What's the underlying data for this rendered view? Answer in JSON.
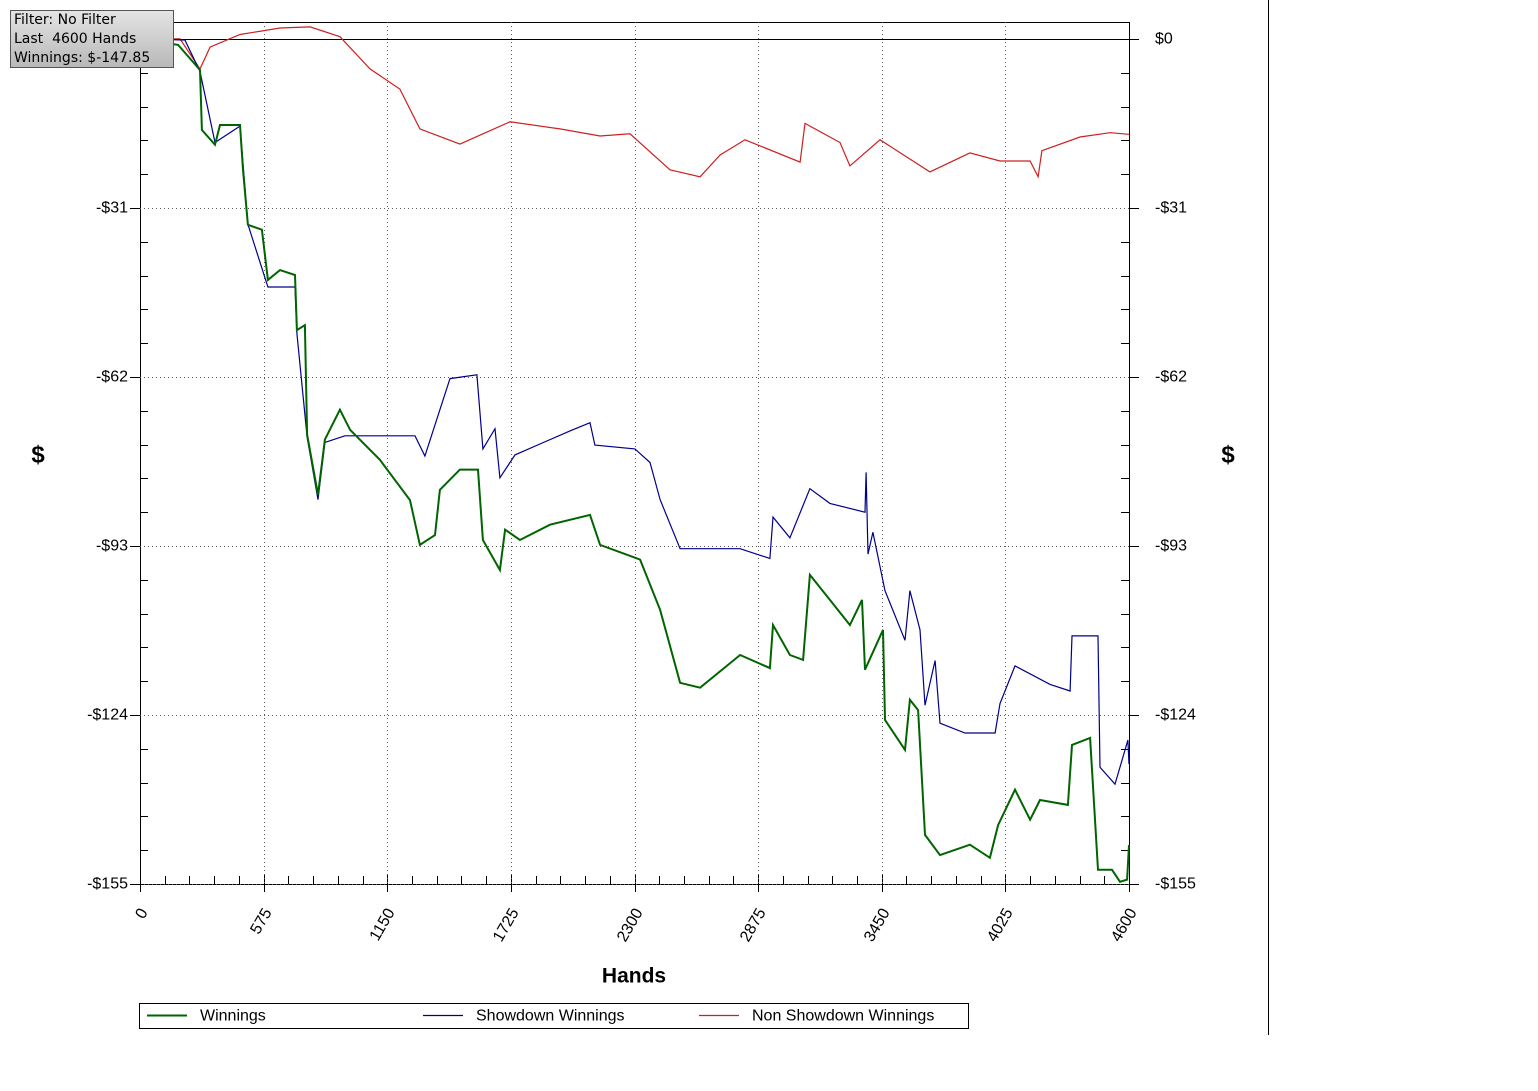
{
  "info": {
    "filter": "Filter: No Filter",
    "hands": "Last  4600 Hands",
    "winnings": "Winnings: $-147.85"
  },
  "chart_data": {
    "type": "line",
    "xlabel": "Hands",
    "ylabel": "$",
    "y2label": "$",
    "xlim": [
      0,
      4600
    ],
    "xticks": [
      0,
      575,
      1150,
      1725,
      2300,
      2875,
      3450,
      4025,
      4600
    ],
    "ylim": [
      -155,
      3.1
    ],
    "yticks": [
      {
        "value": 0,
        "label": "$0"
      },
      {
        "value": -31,
        "label": "-$31"
      },
      {
        "value": -62,
        "label": "-$62"
      },
      {
        "value": -93,
        "label": "-$93"
      },
      {
        "value": -124,
        "label": "-$124"
      },
      {
        "value": -155,
        "label": "-$155"
      }
    ],
    "grid": true,
    "legend": "bottom",
    "series": [
      {
        "name": "Winnings",
        "color": "#006400",
        "x": [
          0,
          177,
          279,
          288,
          349,
          372,
          465,
          479,
          502,
          567,
          595,
          651,
          721,
          730,
          767,
          777,
          828,
          860,
          930,
          977,
          1116,
          1256,
          1302,
          1372,
          1395,
          1488,
          1572,
          1595,
          1674,
          1698,
          1767,
          1907,
          2093,
          2140,
          2326,
          2419,
          2512,
          2605,
          2791,
          2930,
          2944,
          3023,
          3084,
          3116,
          3209,
          3302,
          3358,
          3372,
          3456,
          3465,
          3558,
          3581,
          3619,
          3651,
          3721,
          3860,
          3953,
          3991,
          4070,
          4140,
          4186,
          4316,
          4335,
          4419,
          4456,
          4521,
          4558,
          4591,
          4600
        ],
        "values": [
          0,
          -1.1,
          -5.7,
          -16.7,
          -19.4,
          -15.8,
          -15.8,
          -24.0,
          -34.1,
          -35.0,
          -44.2,
          -42.4,
          -43.3,
          -53.4,
          -52.5,
          -72.6,
          -83.6,
          -73.5,
          -68.0,
          -71.7,
          -77.2,
          -84.6,
          -92.8,
          -91.0,
          -82.7,
          -79.0,
          -79.0,
          -91.9,
          -97.4,
          -90.0,
          -91.9,
          -89.1,
          -87.3,
          -92.8,
          -95.5,
          -104.7,
          -118.1,
          -119.0,
          -113.0,
          -115.4,
          -107.5,
          -113.0,
          -113.9,
          -98.3,
          -102.9,
          -107.5,
          -102.9,
          -115.7,
          -108.4,
          -124.9,
          -130.4,
          -121.2,
          -123.1,
          -146.0,
          -149.7,
          -147.8,
          -150.2,
          -144.2,
          -137.7,
          -143.2,
          -139.6,
          -140.5,
          -129.5,
          -128.2,
          -152.4,
          -152.4,
          -154.6,
          -154.2,
          -147.85
        ]
      },
      {
        "name": "Showdown Winnings",
        "color": "#00008b",
        "x": [
          0,
          209,
          279,
          349,
          465,
          502,
          595,
          721,
          730,
          777,
          828,
          860,
          953,
          1279,
          1325,
          1395,
          1442,
          1567,
          1595,
          1651,
          1674,
          1744,
          1860,
          2000,
          2093,
          2116,
          2302,
          2372,
          2419,
          2512,
          2791,
          2930,
          2944,
          3023,
          3116,
          3209,
          3372,
          3377,
          3386,
          3409,
          3465,
          3558,
          3581,
          3628,
          3651,
          3698,
          3721,
          3837,
          3977,
          4000,
          4070,
          4233,
          4326,
          4335,
          4456,
          4465,
          4535,
          4595,
          4600
        ],
        "values": [
          0,
          -0.2,
          -6,
          -19,
          -16,
          -34,
          -45.5,
          -45.5,
          -54,
          -73,
          -84.5,
          -74,
          -72.8,
          -72.8,
          -76.5,
          -68,
          -62.3,
          -61.6,
          -75.2,
          -71.5,
          -80.5,
          -76.3,
          -74.3,
          -71.9,
          -70.4,
          -74.5,
          -75.2,
          -77.7,
          -84.5,
          -93.5,
          -93.5,
          -95.3,
          -87.7,
          -91.5,
          -82.5,
          -85.2,
          -86.8,
          -79.5,
          -94.5,
          -90.5,
          -101.2,
          -110.3,
          -101.2,
          -108.4,
          -122.2,
          -114,
          -125.5,
          -127.3,
          -127.3,
          -121.9,
          -115,
          -118.4,
          -119.6,
          -109.5,
          -109.5,
          -133.6,
          -136.7,
          -128.6,
          -133
        ]
      },
      {
        "name": "Non Showdown Winnings",
        "color": "#cc2020",
        "x": [
          0,
          186,
          279,
          326,
          465,
          651,
          791,
          930,
          1070,
          1209,
          1302,
          1488,
          1721,
          1953,
          2140,
          2279,
          2465,
          2605,
          2698,
          2814,
          3070,
          3093,
          3256,
          3302,
          3442,
          3674,
          3860,
          4000,
          4140,
          4177,
          4195,
          4372,
          4512,
          4600
        ],
        "values": [
          0,
          0,
          -5.5,
          -1.5,
          0.8,
          2,
          2.2,
          0.4,
          -5.5,
          -9.2,
          -16.5,
          -19.3,
          -15.2,
          -16.5,
          -17.8,
          -17.4,
          -24,
          -25.3,
          -21.3,
          -18.5,
          -22.6,
          -15.5,
          -19,
          -23.3,
          -18.5,
          -24.4,
          -20.9,
          -22.4,
          -22.4,
          -25.3,
          -20.5,
          -18,
          -17.2,
          -17.5
        ]
      }
    ]
  }
}
